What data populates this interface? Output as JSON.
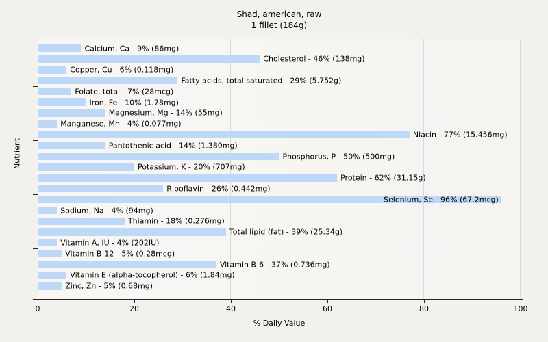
{
  "title": {
    "line1": "Shad, american, raw",
    "line2": "1 fillet (184g)"
  },
  "colors": {
    "bar": "#bed8f8",
    "page_background": "#f2f1ee",
    "plot_background": "#f6f5f2",
    "gridline": "#d9d8d5",
    "axis": "#262626",
    "text": "#000000"
  },
  "chart_data": {
    "type": "bar",
    "orientation": "horizontal",
    "title": "Shad, american, raw",
    "subtitle": "1 fillet (184g)",
    "xlabel": "% Daily Value",
    "ylabel": "Nutrient",
    "xlim": [
      0,
      100
    ],
    "x_ticks": [
      0,
      20,
      40,
      60,
      80,
      100
    ],
    "grid": true,
    "legend": "none",
    "categories": [
      "Calcium, Ca",
      "Cholesterol",
      "Copper, Cu",
      "Fatty acids, total saturated",
      "Folate, total",
      "Iron, Fe",
      "Magnesium, Mg",
      "Manganese, Mn",
      "Niacin",
      "Pantothenic acid",
      "Phosphorus, P",
      "Potassium, K",
      "Protein",
      "Riboflavin",
      "Selenium, Se",
      "Sodium, Na",
      "Thiamin",
      "Total lipid (fat)",
      "Vitamin A, IU",
      "Vitamin B-12",
      "Vitamin B-6",
      "Vitamin E (alpha-tocopherol)",
      "Zinc, Zn"
    ],
    "values": [
      9,
      46,
      6,
      29,
      7,
      10,
      14,
      4,
      77,
      14,
      50,
      20,
      62,
      26,
      96,
      4,
      18,
      39,
      4,
      5,
      37,
      6,
      5
    ],
    "rows": [
      {
        "nutrient": "Calcium, Ca",
        "percent_dv": 9,
        "amount": "86mg",
        "label": "Calcium, Ca - 9% (86mg)"
      },
      {
        "nutrient": "Cholesterol",
        "percent_dv": 46,
        "amount": "138mg",
        "label": "Cholesterol - 46% (138mg)"
      },
      {
        "nutrient": "Copper, Cu",
        "percent_dv": 6,
        "amount": "0.118mg",
        "label": "Copper, Cu - 6% (0.118mg)"
      },
      {
        "nutrient": "Fatty acids, total saturated",
        "percent_dv": 29,
        "amount": "5.752g",
        "label": "Fatty acids, total saturated - 29% (5.752g)"
      },
      {
        "nutrient": "Folate, total",
        "percent_dv": 7,
        "amount": "28mcg",
        "label": "Folate, total - 7% (28mcg)"
      },
      {
        "nutrient": "Iron, Fe",
        "percent_dv": 10,
        "amount": "1.78mg",
        "label": "Iron, Fe - 10% (1.78mg)"
      },
      {
        "nutrient": "Magnesium, Mg",
        "percent_dv": 14,
        "amount": "55mg",
        "label": "Magnesium, Mg - 14% (55mg)"
      },
      {
        "nutrient": "Manganese, Mn",
        "percent_dv": 4,
        "amount": "0.077mg",
        "label": "Manganese, Mn - 4% (0.077mg)"
      },
      {
        "nutrient": "Niacin",
        "percent_dv": 77,
        "amount": "15.456mg",
        "label": "Niacin - 77% (15.456mg)"
      },
      {
        "nutrient": "Pantothenic acid",
        "percent_dv": 14,
        "amount": "1.380mg",
        "label": "Pantothenic acid - 14% (1.380mg)"
      },
      {
        "nutrient": "Phosphorus, P",
        "percent_dv": 50,
        "amount": "500mg",
        "label": "Phosphorus, P - 50% (500mg)"
      },
      {
        "nutrient": "Potassium, K",
        "percent_dv": 20,
        "amount": "707mg",
        "label": "Potassium, K - 20% (707mg)"
      },
      {
        "nutrient": "Protein",
        "percent_dv": 62,
        "amount": "31.15g",
        "label": "Protein - 62% (31.15g)"
      },
      {
        "nutrient": "Riboflavin",
        "percent_dv": 26,
        "amount": "0.442mg",
        "label": "Riboflavin - 26% (0.442mg)"
      },
      {
        "nutrient": "Selenium, Se",
        "percent_dv": 96,
        "amount": "67.2mcg",
        "label": "Selenium, Se - 96% (67.2mcg)"
      },
      {
        "nutrient": "Sodium, Na",
        "percent_dv": 4,
        "amount": "94mg",
        "label": "Sodium, Na - 4% (94mg)"
      },
      {
        "nutrient": "Thiamin",
        "percent_dv": 18,
        "amount": "0.276mg",
        "label": "Thiamin - 18% (0.276mg)"
      },
      {
        "nutrient": "Total lipid (fat)",
        "percent_dv": 39,
        "amount": "25.34g",
        "label": "Total lipid (fat) - 39% (25.34g)"
      },
      {
        "nutrient": "Vitamin A, IU",
        "percent_dv": 4,
        "amount": "202IU",
        "label": "Vitamin A, IU - 4% (202IU)"
      },
      {
        "nutrient": "Vitamin B-12",
        "percent_dv": 5,
        "amount": "0.28mcg",
        "label": "Vitamin B-12 - 5% (0.28mcg)"
      },
      {
        "nutrient": "Vitamin B-6",
        "percent_dv": 37,
        "amount": "0.736mg",
        "label": "Vitamin B-6 - 37% (0.736mg)"
      },
      {
        "nutrient": "Vitamin E (alpha-tocopherol)",
        "percent_dv": 6,
        "amount": "1.84mg",
        "label": "Vitamin E (alpha-tocopherol) - 6% (1.84mg)"
      },
      {
        "nutrient": "Zinc, Zn",
        "percent_dv": 5,
        "amount": "0.68mg",
        "label": "Zinc, Zn - 5% (0.68mg)"
      }
    ]
  }
}
